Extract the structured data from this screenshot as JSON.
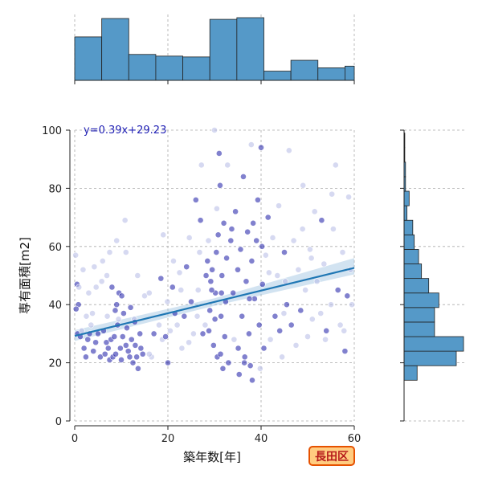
{
  "badge": {
    "label": "長田区",
    "background": "#ffcc80",
    "border": "#e65100",
    "text_color": "#b71c1c"
  },
  "colors": {
    "histogram": "#5599c8",
    "regression_line": "#1f77b4",
    "confidence_band": "#9cc1e0",
    "points_dark": "#1a1aa6",
    "points_light": "#b4b9e6"
  },
  "chart_data": {
    "type": "scatter",
    "xlabel": "築年数[年]",
    "ylabel": "専有面積[m2]",
    "xlim": [
      0,
      60
    ],
    "ylim": [
      0,
      100
    ],
    "x_ticks": [
      0,
      20,
      40,
      60
    ],
    "y_ticks": [
      0,
      20,
      40,
      60,
      80,
      100
    ],
    "grid": true,
    "annotation": "y=0.39x+29.23",
    "regression": {
      "slope": 0.39,
      "intercept": 29.23,
      "band": [
        [
          0,
          27.5,
          31.2
        ],
        [
          30,
          39.6,
          42.2
        ],
        [
          60,
          50.4,
          56.0
        ]
      ]
    },
    "marginal_x_hist": {
      "bin_edges": [
        0,
        5.8,
        11.6,
        17.4,
        23.2,
        29,
        34.8,
        40.6,
        46.4,
        52.2,
        58,
        60
      ],
      "counts": [
        52,
        74,
        31,
        29,
        28,
        73,
        75,
        11,
        24,
        15,
        17
      ]
    },
    "marginal_y_hist": {
      "bin_edges": [
        14,
        19,
        24,
        29,
        34,
        39,
        44,
        49,
        54,
        59,
        64,
        69,
        74,
        79,
        84,
        89,
        94,
        99
      ],
      "counts": [
        18,
        72,
        82,
        42,
        42,
        48,
        34,
        24,
        20,
        14,
        12,
        4,
        7,
        2,
        2,
        1,
        1
      ]
    },
    "points": [
      [
        0.5,
        47,
        "d"
      ],
      [
        0.8,
        40,
        "d"
      ],
      [
        0.3,
        38.5,
        "d"
      ],
      [
        0.6,
        30,
        "d"
      ],
      [
        1.2,
        29,
        "d"
      ],
      [
        0.2,
        57,
        "l"
      ],
      [
        0.9,
        46,
        "l"
      ],
      [
        1.5,
        31,
        "l"
      ],
      [
        2,
        25,
        "d"
      ],
      [
        2.4,
        22,
        "d"
      ],
      [
        2.8,
        28,
        "d"
      ],
      [
        3,
        44,
        "l"
      ],
      [
        3.2,
        30,
        "d"
      ],
      [
        3.5,
        33,
        "l"
      ],
      [
        4,
        24,
        "d"
      ],
      [
        4.2,
        53,
        "l"
      ],
      [
        4.5,
        27,
        "d"
      ],
      [
        5,
        30,
        "d"
      ],
      [
        5.5,
        22,
        "d"
      ],
      [
        6,
        55,
        "l"
      ],
      [
        6.2,
        31,
        "d"
      ],
      [
        6.5,
        23,
        "d"
      ],
      [
        6.8,
        27,
        "d"
      ],
      [
        7,
        36,
        "l"
      ],
      [
        7.2,
        25,
        "d"
      ],
      [
        7.5,
        21,
        "d"
      ],
      [
        7.8,
        28,
        "d"
      ],
      [
        8,
        46,
        "d"
      ],
      [
        8.2,
        22,
        "d"
      ],
      [
        8.5,
        29,
        "d"
      ],
      [
        8.8,
        23,
        "d"
      ],
      [
        9,
        40,
        "d"
      ],
      [
        9.2,
        33,
        "d"
      ],
      [
        9.5,
        44,
        "d"
      ],
      [
        9.8,
        25,
        "d"
      ],
      [
        10,
        21,
        "d"
      ],
      [
        10.3,
        29,
        "d"
      ],
      [
        10.5,
        37,
        "d"
      ],
      [
        10.8,
        69,
        "l"
      ],
      [
        11,
        26,
        "d"
      ],
      [
        11.2,
        32,
        "d"
      ],
      [
        11.5,
        24,
        "d"
      ],
      [
        11.8,
        22,
        "d"
      ],
      [
        12,
        39,
        "d"
      ],
      [
        12.2,
        28,
        "d"
      ],
      [
        12.5,
        20,
        "d"
      ],
      [
        12.8,
        35,
        "l"
      ],
      [
        13,
        26,
        "d"
      ],
      [
        13.3,
        22,
        "d"
      ],
      [
        13.6,
        18,
        "d"
      ],
      [
        14,
        30,
        "d"
      ],
      [
        14.2,
        25,
        "d"
      ],
      [
        9,
        62,
        "l"
      ],
      [
        7.5,
        58,
        "l"
      ],
      [
        5.8,
        48,
        "l"
      ],
      [
        11,
        58,
        "l"
      ],
      [
        15,
        43,
        "l"
      ],
      [
        16,
        44,
        "l"
      ],
      [
        16.5,
        22,
        "l"
      ],
      [
        17,
        30,
        "d"
      ],
      [
        18.5,
        49,
        "d"
      ],
      [
        18.8,
        28,
        "l"
      ],
      [
        19,
        64,
        "l"
      ],
      [
        19.5,
        29,
        "d"
      ],
      [
        20,
        20,
        "d"
      ],
      [
        20.5,
        31,
        "l"
      ],
      [
        21,
        46,
        "d"
      ],
      [
        21.5,
        37,
        "d"
      ],
      [
        22,
        33,
        "l"
      ],
      [
        22.5,
        51,
        "l"
      ],
      [
        23,
        25,
        "l"
      ],
      [
        23.5,
        36,
        "d"
      ],
      [
        24,
        53,
        "d"
      ],
      [
        24.5,
        27,
        "l"
      ],
      [
        25,
        41,
        "d"
      ],
      [
        25.5,
        30,
        "l"
      ],
      [
        26,
        76,
        "d"
      ],
      [
        26.5,
        45,
        "l"
      ],
      [
        27,
        69,
        "d"
      ],
      [
        27.5,
        30,
        "d"
      ],
      [
        28,
        33,
        "l"
      ],
      [
        28.2,
        50,
        "d"
      ],
      [
        28.5,
        55,
        "d"
      ],
      [
        28.8,
        31,
        "d"
      ],
      [
        29,
        38,
        "d"
      ],
      [
        29.2,
        48,
        "d"
      ],
      [
        29.5,
        52,
        "d"
      ],
      [
        29.8,
        26,
        "d"
      ],
      [
        30,
        100,
        "l"
      ],
      [
        30.2,
        44,
        "d"
      ],
      [
        30.4,
        58,
        "d"
      ],
      [
        30.6,
        22,
        "d"
      ],
      [
        30.8,
        64,
        "d"
      ],
      [
        31,
        92,
        "d"
      ],
      [
        31.2,
        81,
        "d"
      ],
      [
        31.4,
        36,
        "d"
      ],
      [
        31.6,
        50,
        "d"
      ],
      [
        31.8,
        18,
        "d"
      ],
      [
        32,
        68,
        "d"
      ],
      [
        32.2,
        29,
        "d"
      ],
      [
        32.4,
        41,
        "d"
      ],
      [
        32.6,
        56,
        "d"
      ],
      [
        33,
        20,
        "d"
      ],
      [
        33.5,
        62,
        "d"
      ],
      [
        34,
        44,
        "d"
      ],
      [
        34.5,
        72,
        "d"
      ],
      [
        35,
        52,
        "d"
      ],
      [
        35.3,
        16,
        "d"
      ],
      [
        35.6,
        59,
        "d"
      ],
      [
        35.9,
        36,
        "d"
      ],
      [
        36.2,
        84,
        "d"
      ],
      [
        36.5,
        22,
        "d"
      ],
      [
        36.8,
        48,
        "d"
      ],
      [
        37.1,
        65,
        "d"
      ],
      [
        37.4,
        30,
        "d"
      ],
      [
        37.7,
        19,
        "d"
      ],
      [
        38,
        55,
        "d"
      ],
      [
        38.3,
        68,
        "d"
      ],
      [
        38.6,
        42,
        "d"
      ],
      [
        39,
        62,
        "d"
      ],
      [
        39.3,
        76,
        "d"
      ],
      [
        39.6,
        33,
        "d"
      ],
      [
        40,
        94,
        "d"
      ],
      [
        40.3,
        47,
        "d"
      ],
      [
        40.6,
        25,
        "d"
      ],
      [
        41,
        57,
        "l"
      ],
      [
        41.5,
        70,
        "d"
      ],
      [
        42,
        28,
        "l"
      ],
      [
        42.5,
        63,
        "l"
      ],
      [
        43,
        36,
        "d"
      ],
      [
        43.5,
        50,
        "l"
      ],
      [
        44,
        31,
        "d"
      ],
      [
        44.5,
        22,
        "l"
      ],
      [
        45,
        58,
        "d"
      ],
      [
        45.5,
        40,
        "d"
      ],
      [
        46,
        93,
        "l"
      ],
      [
        46.5,
        33,
        "d"
      ],
      [
        47,
        62,
        "l"
      ],
      [
        47.5,
        26,
        "l"
      ],
      [
        48,
        52,
        "l"
      ],
      [
        48.5,
        38,
        "d"
      ],
      [
        49,
        81,
        "l"
      ],
      [
        49.5,
        45,
        "l"
      ],
      [
        50,
        29,
        "l"
      ],
      [
        50.5,
        59,
        "l"
      ],
      [
        51,
        35,
        "l"
      ],
      [
        51.5,
        72,
        "l"
      ],
      [
        52,
        48,
        "l"
      ],
      [
        53,
        69,
        "d"
      ],
      [
        53.5,
        54,
        "l"
      ],
      [
        54,
        31,
        "d"
      ],
      [
        55,
        40,
        "l"
      ],
      [
        55.5,
        66,
        "l"
      ],
      [
        56,
        88,
        "l"
      ],
      [
        56.5,
        45,
        "d"
      ],
      [
        57,
        33,
        "l"
      ],
      [
        57.5,
        58,
        "l"
      ],
      [
        58,
        24,
        "d"
      ],
      [
        58.5,
        43,
        "d"
      ],
      [
        58.8,
        77,
        "l"
      ],
      [
        59.2,
        52,
        "l"
      ],
      [
        59.5,
        40,
        "l"
      ],
      [
        2.5,
        36,
        "l"
      ],
      [
        4.6,
        46,
        "l"
      ],
      [
        13.5,
        50,
        "l"
      ],
      [
        16,
        23,
        "l"
      ],
      [
        21.2,
        55,
        "l"
      ],
      [
        26.8,
        58,
        "l"
      ],
      [
        32.8,
        88,
        "l"
      ],
      [
        37.9,
        95,
        "l"
      ],
      [
        43.8,
        74,
        "l"
      ],
      [
        48.9,
        66,
        "l"
      ],
      [
        52.8,
        37,
        "l"
      ],
      [
        55.2,
        78,
        "l"
      ],
      [
        27.2,
        88,
        "l"
      ],
      [
        30.5,
        73,
        "l"
      ],
      [
        24.6,
        63,
        "l"
      ],
      [
        19.9,
        41,
        "l"
      ],
      [
        9.4,
        35,
        "l"
      ],
      [
        1.8,
        52,
        "l"
      ],
      [
        39.8,
        18,
        "l"
      ],
      [
        34.2,
        28,
        "l"
      ],
      [
        30.1,
        35,
        "d"
      ],
      [
        31.5,
        44,
        "d"
      ],
      [
        29.4,
        45,
        "d"
      ],
      [
        31.3,
        23,
        "d"
      ],
      [
        36.4,
        20,
        "d"
      ],
      [
        38.1,
        14,
        "d"
      ],
      [
        40.2,
        60,
        "d"
      ],
      [
        33.7,
        66,
        "d"
      ],
      [
        37.5,
        42,
        "d"
      ],
      [
        35.1,
        25,
        "d"
      ],
      [
        12.9,
        34,
        "d"
      ],
      [
        10.1,
        43,
        "d"
      ],
      [
        8.7,
        38,
        "d"
      ],
      [
        6.9,
        50,
        "l"
      ],
      [
        3.8,
        37,
        "l"
      ],
      [
        14.6,
        23,
        "d"
      ],
      [
        18.1,
        33,
        "l"
      ],
      [
        22.8,
        45,
        "l"
      ],
      [
        26.3,
        36,
        "l"
      ],
      [
        28.7,
        62,
        "l"
      ],
      [
        41.7,
        51,
        "l"
      ],
      [
        45.2,
        48,
        "l"
      ],
      [
        50.8,
        56,
        "l"
      ],
      [
        53.8,
        28,
        "l"
      ],
      [
        57.8,
        31,
        "l"
      ],
      [
        44.9,
        37,
        "l"
      ]
    ]
  }
}
